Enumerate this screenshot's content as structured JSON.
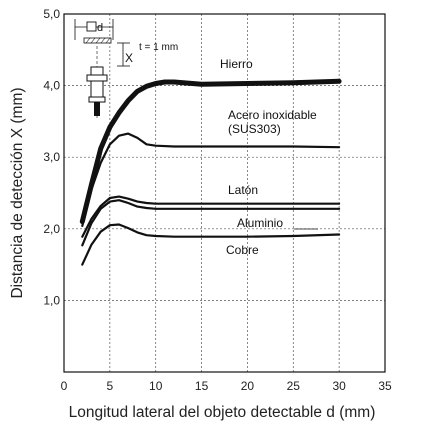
{
  "chart_data": {
    "type": "line",
    "xlabel": "Longitud lateral del objeto detectable d (mm)",
    "ylabel": "Distancia de detección X (mm)",
    "xlim": [
      0,
      35
    ],
    "ylim": [
      0,
      5.0
    ],
    "x_ticks": [
      "0",
      "5",
      "10",
      "15",
      "20",
      "25",
      "30",
      "35"
    ],
    "y_ticks": [
      "1,0",
      "2,0",
      "3,0",
      "4,0",
      "5,0"
    ],
    "grid": true,
    "series": [
      {
        "name": "Hierro",
        "stroke": "thick",
        "x": [
          2,
          3,
          4,
          5,
          6,
          7,
          8,
          9,
          10,
          11,
          12,
          13,
          15,
          20,
          25,
          30
        ],
        "y": [
          2.1,
          2.62,
          3.12,
          3.42,
          3.62,
          3.79,
          3.92,
          3.99,
          4.03,
          4.05,
          4.05,
          4.04,
          4.02,
          4.03,
          4.04,
          4.06
        ]
      },
      {
        "name": "Acero inoxidable",
        "name2": "(SUS303)",
        "stroke": "normal",
        "x": [
          2,
          3,
          4,
          5,
          6,
          7,
          8,
          9,
          10,
          12,
          15,
          20,
          25,
          30
        ],
        "y": [
          2.04,
          2.55,
          2.92,
          3.18,
          3.3,
          3.33,
          3.27,
          3.18,
          3.16,
          3.15,
          3.15,
          3.15,
          3.15,
          3.14
        ]
      },
      {
        "name": "Latón",
        "stroke": "normal",
        "x": [
          2,
          3,
          4,
          5,
          6,
          7,
          8,
          9,
          10,
          12,
          15,
          20,
          25,
          30
        ],
        "y": [
          1.89,
          2.14,
          2.32,
          2.43,
          2.45,
          2.42,
          2.38,
          2.36,
          2.35,
          2.35,
          2.35,
          2.35,
          2.35,
          2.35
        ]
      },
      {
        "name": "Aluminio",
        "stroke": "normal",
        "x": [
          2,
          3,
          4,
          5,
          6,
          7,
          8,
          9,
          10,
          12,
          15,
          20,
          25,
          30
        ],
        "y": [
          1.77,
          2.08,
          2.28,
          2.38,
          2.4,
          2.36,
          2.31,
          2.29,
          2.28,
          2.28,
          2.28,
          2.28,
          2.28,
          2.28
        ]
      },
      {
        "name": "Cobre",
        "stroke": "normal",
        "x": [
          2,
          3,
          4,
          5,
          6,
          7,
          8,
          9,
          10,
          12,
          15,
          20,
          25,
          30
        ],
        "y": [
          1.5,
          1.78,
          1.96,
          2.05,
          2.06,
          2.01,
          1.95,
          1.91,
          1.9,
          1.89,
          1.89,
          1.89,
          1.9,
          1.92
        ]
      }
    ],
    "diagram": {
      "side_label": "d",
      "distance_label": "X",
      "thickness_note": "t = 1 mm"
    }
  }
}
